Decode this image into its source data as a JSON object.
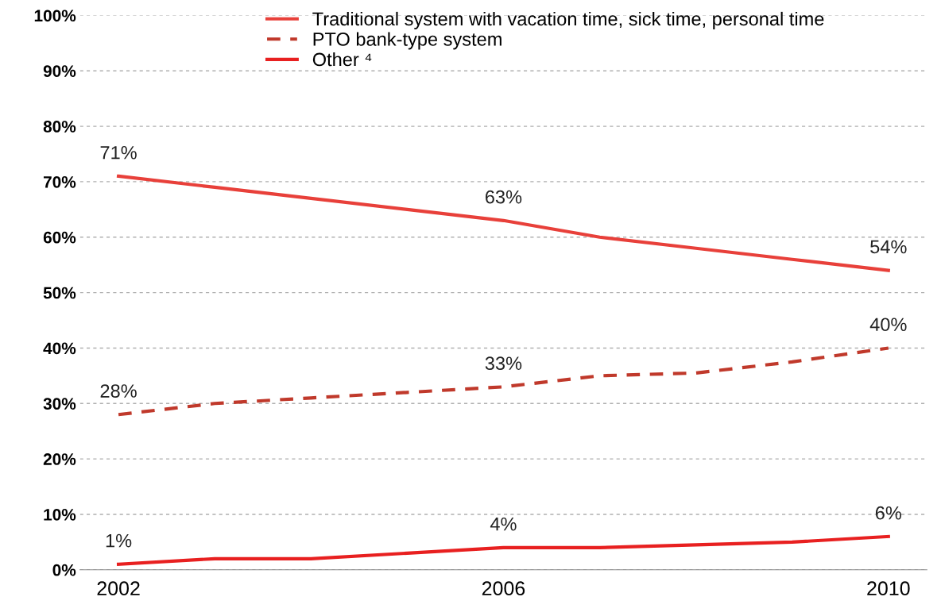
{
  "chart_data": {
    "type": "line",
    "x": [
      2002,
      2003,
      2004,
      2005,
      2006,
      2007,
      2008,
      2009,
      2010
    ],
    "xlim": [
      2001.6,
      2010.4
    ],
    "xticks": [
      2002,
      2006,
      2010
    ],
    "ylim": [
      0,
      100
    ],
    "yticks": [
      {
        "value": 0,
        "label": "0%"
      },
      {
        "value": 10,
        "label": "10%"
      },
      {
        "value": 20,
        "label": "20%"
      },
      {
        "value": 30,
        "label": "30%"
      },
      {
        "value": 40,
        "label": "40%"
      },
      {
        "value": 50,
        "label": "50%"
      },
      {
        "value": 60,
        "label": "60%"
      },
      {
        "value": 70,
        "label": "70%"
      },
      {
        "value": 80,
        "label": "80%"
      },
      {
        "value": 90,
        "label": "90%"
      },
      {
        "value": 100,
        "label": "100%"
      }
    ],
    "grid": "y",
    "legend": "top",
    "marker": "none",
    "series": [
      {
        "name": "Traditional system with vacation time, sick time, personal time",
        "color": "#e8403a",
        "line_style": "solid",
        "values": [
          71,
          69,
          67,
          65,
          63,
          60,
          58,
          56,
          54
        ],
        "value_labels": [
          "71%",
          null,
          null,
          null,
          "63%",
          null,
          null,
          null,
          "54%"
        ]
      },
      {
        "name": "PTO bank-type system",
        "color": "#c0392b",
        "line_style": "dashed",
        "values": [
          28,
          30,
          31,
          32,
          33,
          35,
          35.5,
          37.5,
          40
        ],
        "value_labels": [
          "28%",
          null,
          null,
          null,
          "33%",
          null,
          null,
          null,
          "40%"
        ]
      },
      {
        "name": "Other ⁴",
        "color": "#e82020",
        "line_style": "solid",
        "values": [
          1,
          2,
          2,
          3,
          4,
          4,
          4.5,
          5,
          6
        ],
        "value_labels": [
          "1%",
          null,
          null,
          null,
          "4%",
          null,
          null,
          null,
          "6%"
        ]
      }
    ]
  }
}
